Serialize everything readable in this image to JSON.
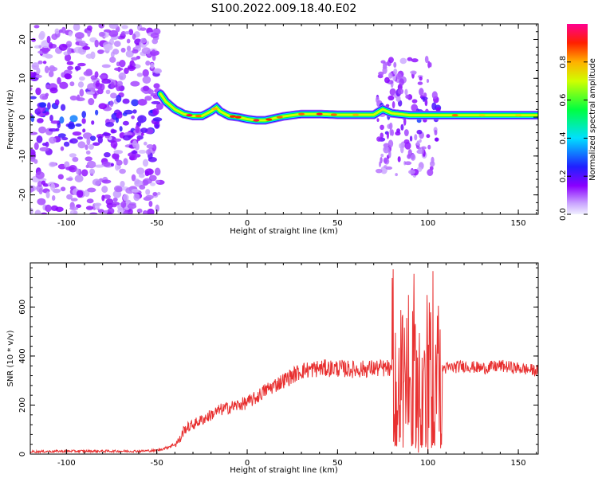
{
  "figure_title": "S100.2022.009.18.40.E02",
  "chart_data": [
    {
      "type": "heatmap",
      "title": "S100.2022.009.18.40.E02",
      "xlabel": "Height of straight line (km)",
      "ylabel": "Frequency (Hz)",
      "xlim": [
        -120,
        161
      ],
      "ylim": [
        -25,
        24
      ],
      "xticks": [
        -100,
        -50,
        0,
        50,
        100,
        150
      ],
      "yticks": [
        -20,
        -10,
        0,
        10,
        20
      ],
      "ridge": {
        "x": [
          -48,
          -45,
          -40,
          -35,
          -30,
          -25,
          -20,
          -17,
          -15,
          -10,
          -5,
          0,
          5,
          10,
          15,
          20,
          30,
          40,
          50,
          60,
          70,
          75,
          80,
          90,
          100,
          104,
          110,
          120,
          130,
          140,
          150,
          161
        ],
        "y": [
          6,
          4,
          2,
          0.8,
          0.3,
          0.3,
          1.5,
          2.5,
          1.5,
          0.3,
          0,
          -0.5,
          -0.8,
          -0.8,
          -0.3,
          0.2,
          0.8,
          0.8,
          0.6,
          0.6,
          0.6,
          2,
          1,
          0.5,
          0.5,
          0.5,
          0.5,
          0.5,
          0.5,
          0.5,
          0.5,
          0.5
        ]
      },
      "colorbar": {
        "label": "Normalized spectral amplitude",
        "range": [
          0,
          1
        ],
        "ticks": [
          "0.0",
          "0.2",
          "0.4",
          "0.6",
          "0.8"
        ]
      }
    },
    {
      "type": "line",
      "xlabel": "Height of straight line (km)",
      "ylabel": "SNR (10 * v/v)",
      "xlim": [
        -120,
        161
      ],
      "ylim": [
        0,
        780
      ],
      "xticks": [
        -100,
        -50,
        0,
        50,
        100,
        150
      ],
      "yticks": [
        0,
        200,
        400,
        600
      ],
      "color": "#e83030",
      "envelope": {
        "x": [
          -120,
          -100,
          -80,
          -60,
          -50,
          -45,
          -40,
          -37,
          -35,
          -30,
          -25,
          -20,
          -15,
          -10,
          -5,
          0,
          5,
          10,
          15,
          20,
          25,
          30,
          40,
          50,
          60,
          70,
          78,
          82,
          86,
          90,
          94,
          98,
          102,
          106,
          108,
          110,
          120,
          130,
          140,
          150,
          161
        ],
        "y": [
          10,
          12,
          12,
          12,
          15,
          25,
          40,
          60,
          100,
          120,
          140,
          160,
          180,
          190,
          200,
          210,
          230,
          260,
          280,
          300,
          320,
          340,
          350,
          350,
          345,
          350,
          350,
          300,
          250,
          300,
          280,
          300,
          300,
          340,
          350,
          350,
          360,
          350,
          360,
          350,
          340
        ]
      }
    }
  ]
}
